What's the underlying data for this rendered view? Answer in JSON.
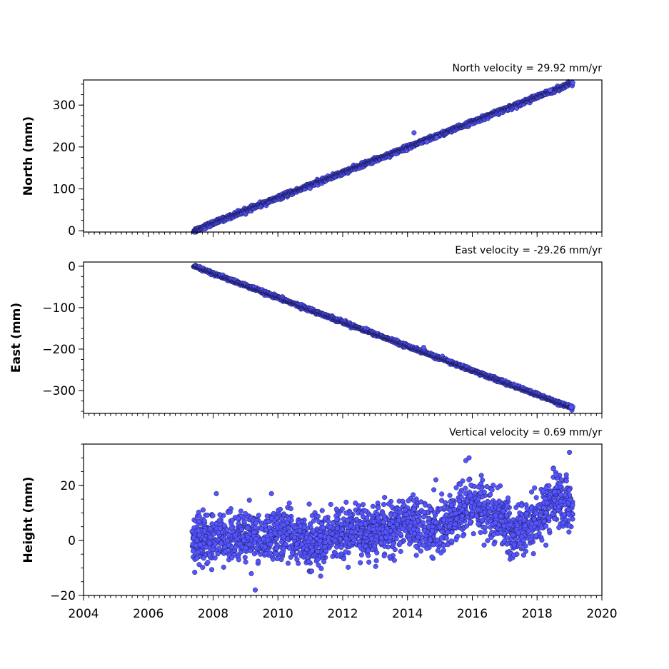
{
  "colors": {
    "marker_fill": "#5555ff",
    "marker_edge": "#1a1a5a",
    "axis": "#000000",
    "background": "#ffffff"
  },
  "chart_data": [
    {
      "type": "scatter",
      "title": "North velocity = 29.92 mm/yr",
      "ylabel": "North (mm)",
      "xlim": [
        2004,
        2020
      ],
      "ylim": [
        -3,
        360
      ],
      "yticks": [
        0,
        100,
        200,
        300
      ],
      "ytick_labels": [
        "0",
        "100",
        "200",
        "300"
      ],
      "xtick_labels_visible": false,
      "trend": {
        "start": [
          2007.4,
          0
        ],
        "end": [
          2019.1,
          353
        ]
      },
      "noise_mm": 2.5,
      "outliers": [
        [
          2014.2,
          234
        ],
        [
          2014.6,
          212
        ],
        [
          2014.9,
          222
        ],
        [
          2018.4,
          336
        ]
      ],
      "grid": false
    },
    {
      "type": "scatter",
      "title": "East velocity = -29.26 mm/yr",
      "ylabel": "East (mm)",
      "xlim": [
        2004,
        2020
      ],
      "ylim": [
        -355,
        10
      ],
      "yticks": [
        0,
        -100,
        -200,
        -300
      ],
      "ytick_labels": [
        "0",
        "−100",
        "−200",
        "−300"
      ],
      "xtick_labels_visible": false,
      "trend": {
        "start": [
          2007.4,
          0
        ],
        "end": [
          2019.1,
          -342
        ]
      },
      "noise_mm": 2.0,
      "outliers": [
        [
          2014.5,
          -196
        ],
        [
          2019.05,
          -340
        ]
      ],
      "grid": false
    },
    {
      "type": "scatter",
      "title": "Vertical velocity = 0.69 mm/yr",
      "ylabel": "Height (mm)",
      "xlim": [
        2004,
        2020
      ],
      "ylim": [
        -20,
        35
      ],
      "yticks": [
        -20,
        0,
        20
      ],
      "ytick_labels": [
        "−20",
        "0",
        "20"
      ],
      "xticks": [
        2004,
        2006,
        2008,
        2010,
        2012,
        2014,
        2016,
        2018,
        2020
      ],
      "xtick_labels": [
        "2004",
        "2006",
        "2008",
        "2010",
        "2012",
        "2014",
        "2016",
        "2018",
        "2020"
      ],
      "xtick_labels_visible": true,
      "grid": false,
      "x_range": [
        2007.35,
        2019.1
      ],
      "mean_profile": [
        [
          2007.4,
          0
        ],
        [
          2008.0,
          1
        ],
        [
          2009.0,
          2
        ],
        [
          2010.0,
          2
        ],
        [
          2010.5,
          3
        ],
        [
          2011.0,
          -2
        ],
        [
          2011.5,
          0
        ],
        [
          2012.0,
          2
        ],
        [
          2013.0,
          3
        ],
        [
          2013.5,
          5
        ],
        [
          2014.0,
          6
        ],
        [
          2014.5,
          5
        ],
        [
          2015.0,
          5
        ],
        [
          2015.5,
          8
        ],
        [
          2016.0,
          13
        ],
        [
          2016.5,
          11
        ],
        [
          2017.0,
          6
        ],
        [
          2017.3,
          2
        ],
        [
          2017.7,
          6
        ],
        [
          2018.0,
          7
        ],
        [
          2018.5,
          15
        ],
        [
          2019.1,
          13
        ]
      ],
      "noise_mm": 4.5,
      "outliers": [
        [
          2009.3,
          -18
        ],
        [
          2019.0,
          32
        ],
        [
          2015.9,
          30
        ],
        [
          2015.8,
          29
        ],
        [
          2008.1,
          17
        ],
        [
          2009.8,
          17
        ],
        [
          2018.5,
          26
        ]
      ]
    }
  ]
}
